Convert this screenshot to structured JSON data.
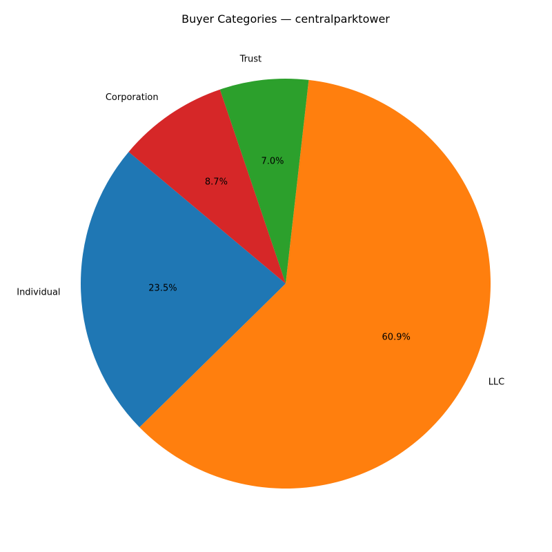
{
  "chart_data": {
    "type": "pie",
    "title": "Buyer Categories — centralparktower",
    "slices": [
      {
        "label": "Individual",
        "percent": 23.5,
        "display": "23.5%",
        "color": "#1f77b4"
      },
      {
        "label": "LLC",
        "percent": 60.9,
        "display": "60.9%",
        "color": "#ff7f0e"
      },
      {
        "label": "Trust",
        "percent": 7.0,
        "display": "7.0%",
        "color": "#2ca02c"
      },
      {
        "label": "Corporation",
        "percent": 8.7,
        "display": "8.7%",
        "color": "#d62728"
      }
    ],
    "start_angle_deg": 140,
    "direction": "counterclockwise"
  }
}
